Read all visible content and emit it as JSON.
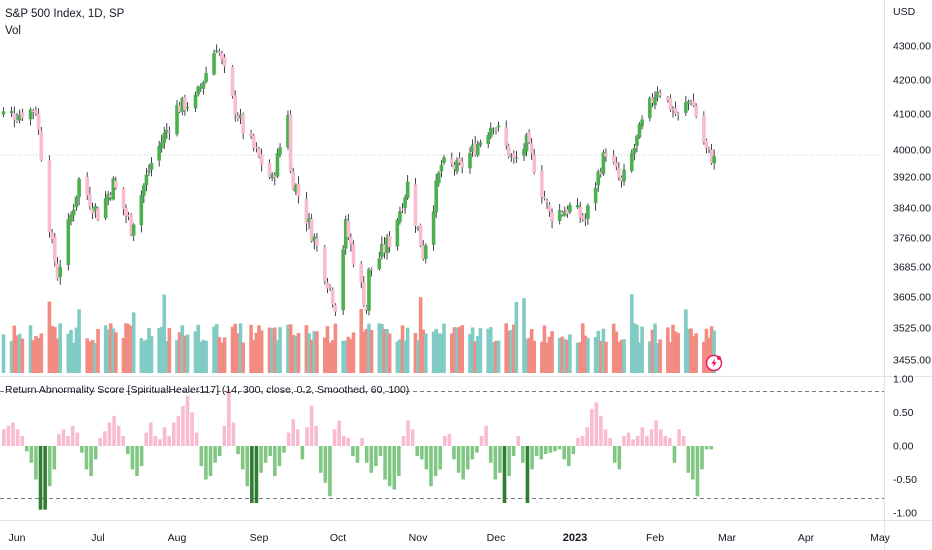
{
  "header": {
    "symbol_line": "S&P 500 Index, 1D, SP",
    "volume_label": "Vol",
    "currency": "USD"
  },
  "indicator": {
    "label": "Return Abnormality Score [SpiritualHealer117] (14, 300, close, 0.2, Smoothed, 60, 100)"
  },
  "colors": {
    "up_candle": "#4caf50",
    "down_candle": "#f8bbd0",
    "wick": "#131722",
    "vol_up": "#80cbc4",
    "vol_down": "#f28b82",
    "ind_pos": "#f8bbd0",
    "ind_neg_light": "#81c784",
    "ind_neg_dark": "#2e7d32",
    "gridline": "#d1d4dc",
    "accent": "#e91e63"
  },
  "icons": {
    "lightning": "lightning-badge-icon"
  },
  "chart_data": [
    {
      "type": "candlestick",
      "title": "S&P 500 Index, 1D, SP",
      "price_axis_labels": [
        "4300.00",
        "4200.00",
        "4100.00",
        "4000.00",
        "3920.00",
        "3840.00",
        "3760.00",
        "3685.00",
        "3605.00",
        "3525.00",
        "3455.00"
      ],
      "price_ticks": [
        4300,
        4200,
        4100,
        4000,
        3920,
        3840,
        3760,
        3685,
        3605,
        3525,
        3455
      ],
      "y_unit": "USD",
      "reference_level": 4000,
      "time_axis_labels": [
        "Jun",
        "Jul",
        "Aug",
        "Sep",
        "Oct",
        "Nov",
        "Dec",
        "2023",
        "Feb",
        "Mar",
        "Apr",
        "May"
      ],
      "close_path": [
        {
          "date": "2022-06-01",
          "close": 4100
        },
        {
          "date": "2022-06-08",
          "close": 4115
        },
        {
          "date": "2022-06-14",
          "close": 3735
        },
        {
          "date": "2022-06-16",
          "close": 3666
        },
        {
          "date": "2022-06-24",
          "close": 3911
        },
        {
          "date": "2022-07-01",
          "close": 3825
        },
        {
          "date": "2022-07-07",
          "close": 3902
        },
        {
          "date": "2022-07-14",
          "close": 3790
        },
        {
          "date": "2022-07-22",
          "close": 3962
        },
        {
          "date": "2022-08-01",
          "close": 4118
        },
        {
          "date": "2022-08-08",
          "close": 4140
        },
        {
          "date": "2022-08-16",
          "close": 4305
        },
        {
          "date": "2022-08-22",
          "close": 4137
        },
        {
          "date": "2022-08-26",
          "close": 4057
        },
        {
          "date": "2022-09-06",
          "close": 3908
        },
        {
          "date": "2022-09-12",
          "close": 4110
        },
        {
          "date": "2022-09-13",
          "close": 3932
        },
        {
          "date": "2022-09-22",
          "close": 3757
        },
        {
          "date": "2022-09-30",
          "close": 3586
        },
        {
          "date": "2022-10-04",
          "close": 3791
        },
        {
          "date": "2022-10-12",
          "close": 3577
        },
        {
          "date": "2022-10-13",
          "close": 3669
        },
        {
          "date": "2022-10-21",
          "close": 3753
        },
        {
          "date": "2022-10-28",
          "close": 3901
        },
        {
          "date": "2022-11-03",
          "close": 3720
        },
        {
          "date": "2022-11-10",
          "close": 3956
        },
        {
          "date": "2022-11-17",
          "close": 3946
        },
        {
          "date": "2022-11-30",
          "close": 4080
        },
        {
          "date": "2022-12-08",
          "close": 3963
        },
        {
          "date": "2022-12-13",
          "close": 4019
        },
        {
          "date": "2022-12-22",
          "close": 3822
        },
        {
          "date": "2022-12-30",
          "close": 3840
        },
        {
          "date": "2023-01-05",
          "close": 3808
        },
        {
          "date": "2023-01-13",
          "close": 3999
        },
        {
          "date": "2023-01-19",
          "close": 3899
        },
        {
          "date": "2023-01-27",
          "close": 4070
        },
        {
          "date": "2023-02-02",
          "close": 4179
        },
        {
          "date": "2023-02-10",
          "close": 4090
        },
        {
          "date": "2023-02-15",
          "close": 4148
        },
        {
          "date": "2023-02-21",
          "close": 3997
        },
        {
          "date": "2023-02-24",
          "close": 3970
        }
      ],
      "volume": "unlabeled bars under price, colored by day direction"
    },
    {
      "type": "bar",
      "title": "Return Abnormality Score [SpiritualHealer117] (14, 300, close, 0.2, Smoothed, 60, 100)",
      "y_axis_labels": [
        "1.00",
        "0.50",
        "0.00",
        "-0.50",
        "-1.00"
      ],
      "ylim": [
        -1.0,
        1.0
      ],
      "threshold_lines": [
        0.8,
        -0.8
      ],
      "values": [
        0.25,
        0.3,
        0.35,
        0.25,
        0.15,
        -0.08,
        -0.25,
        -0.5,
        -0.95,
        -0.95,
        -0.6,
        -0.35,
        0.18,
        0.25,
        0.15,
        0.3,
        0.2,
        -0.1,
        -0.35,
        -0.45,
        -0.2,
        0.12,
        0.22,
        0.35,
        0.45,
        0.3,
        0.15,
        -0.12,
        -0.35,
        -0.45,
        -0.3,
        0.2,
        0.35,
        0.15,
        0.1,
        0.28,
        0.15,
        0.35,
        0.45,
        0.6,
        0.75,
        0.5,
        0.2,
        -0.3,
        -0.5,
        -0.45,
        -0.25,
        -0.15,
        0.3,
        0.85,
        0.35,
        -0.12,
        -0.35,
        -0.6,
        -0.85,
        -0.85,
        -0.4,
        -0.25,
        -0.15,
        -0.45,
        -0.3,
        -0.1,
        0.2,
        0.4,
        0.25,
        -0.2,
        0.28,
        0.6,
        0.3,
        -0.4,
        -0.55,
        -0.75,
        0.25,
        0.38,
        0.15,
        0.12,
        -0.15,
        -0.25,
        0.12,
        -0.25,
        -0.4,
        -0.3,
        -0.15,
        -0.5,
        -0.6,
        -0.65,
        -0.45,
        0.15,
        0.38,
        0.25,
        -0.15,
        -0.2,
        -0.35,
        -0.6,
        -0.45,
        -0.35,
        0.15,
        0.18,
        -0.2,
        -0.4,
        -0.5,
        -0.35,
        -0.2,
        -0.1,
        0.15,
        0.3,
        -0.25,
        -0.5,
        -0.4,
        -0.85,
        -0.45,
        -0.15,
        0.15,
        -0.25,
        -0.85,
        -0.35,
        -0.15,
        -0.2,
        -0.12,
        -0.1,
        -0.08,
        -0.05,
        -0.2,
        -0.3,
        -0.12,
        0.12,
        0.15,
        0.28,
        0.55,
        0.65,
        0.45,
        0.25,
        0.12,
        -0.25,
        -0.35,
        0.15,
        0.2,
        0.1,
        0.15,
        0.28,
        0.15,
        0.25,
        0.38,
        0.25,
        0.15,
        0.12,
        -0.25,
        0.25,
        0.15,
        -0.4,
        -0.5,
        -0.75,
        -0.35,
        -0.05,
        -0.05
      ]
    }
  ]
}
